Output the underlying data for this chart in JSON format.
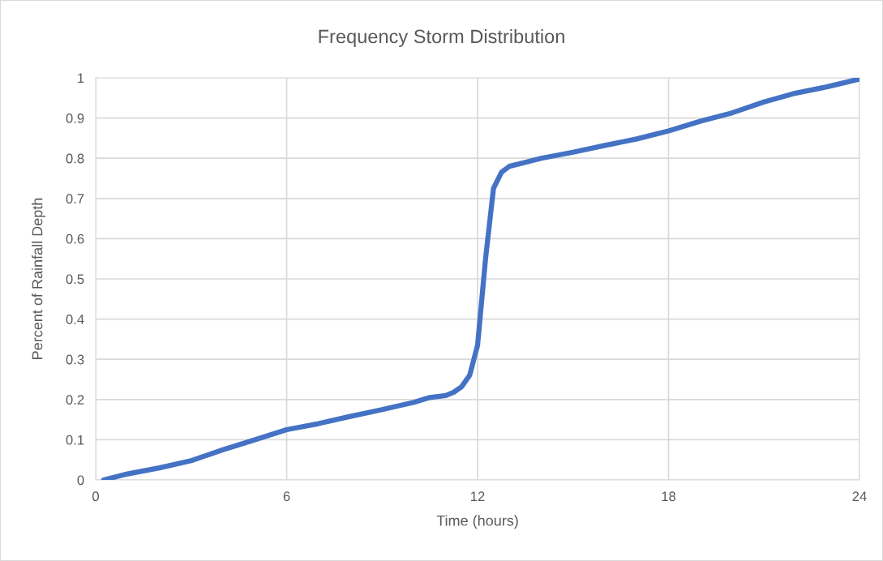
{
  "chart_data": {
    "type": "line",
    "title": "Frequency Storm Distribution",
    "xlabel": "Time (hours)",
    "ylabel": "Percent of Rainfall Depth",
    "series": [
      {
        "color": "#4472c4",
        "x": [
          0.25,
          1,
          2,
          3,
          4,
          5,
          6,
          7,
          8,
          9,
          10,
          10.5,
          11,
          11.25,
          11.5,
          11.75,
          12,
          12.25,
          12.5,
          12.75,
          13,
          13.5,
          14,
          15,
          16,
          17,
          18,
          19,
          20,
          21,
          22,
          23,
          24
        ],
        "values": [
          0,
          0.015,
          0.03,
          0.048,
          0.075,
          0.1,
          0.125,
          0.14,
          0.158,
          0.175,
          0.193,
          0.205,
          0.21,
          0.218,
          0.232,
          0.26,
          0.335,
          0.55,
          0.725,
          0.765,
          0.78,
          0.79,
          0.8,
          0.815,
          0.832,
          0.848,
          0.868,
          0.892,
          0.913,
          0.94,
          0.962,
          0.978,
          0.997
        ]
      }
    ],
    "xlim": [
      0,
      24
    ],
    "xticks": [
      0,
      6,
      12,
      18,
      24
    ],
    "ylim": [
      0,
      1
    ],
    "yticks": [
      0,
      0.1,
      0.2,
      0.3,
      0.4,
      0.5,
      0.6,
      0.7,
      0.8,
      0.9,
      1
    ],
    "grid": true,
    "legend": false,
    "marker": "none",
    "line_style": "solid"
  }
}
